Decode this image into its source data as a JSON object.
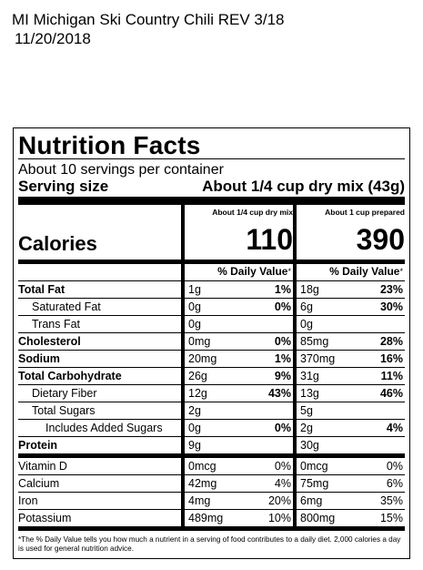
{
  "header": {
    "line1": "MI Michigan Ski Country Chili REV 3/18",
    "line2": "11/20/2018"
  },
  "label": {
    "title": "Nutrition Facts",
    "servings": "About 10 servings per container",
    "serving_size_label": "Serving size",
    "serving_size_value": "About 1/4 cup dry mix (43g)",
    "calories_label": "Calories",
    "col1_header": "About 1/4 cup dry mix",
    "col2_header": "About 1 cup prepared",
    "col1_calories": "110",
    "col2_calories": "390",
    "dv_header": "% Daily Value",
    "dv_asterisk": "*",
    "rows": [
      {
        "name": "Total Fat",
        "a": "1g",
        "ap": "1%",
        "b": "18g",
        "bp": "23%"
      },
      {
        "name": "Saturated Fat",
        "a": "0g",
        "ap": "0%",
        "b": "6g",
        "bp": "30%"
      },
      {
        "name": "Trans Fat",
        "a": "0g",
        "ap": "",
        "b": "0g",
        "bp": ""
      },
      {
        "name": "Cholesterol",
        "a": "0mg",
        "ap": "0%",
        "b": "85mg",
        "bp": "28%"
      },
      {
        "name": "Sodium",
        "a": "20mg",
        "ap": "1%",
        "b": "370mg",
        "bp": "16%"
      },
      {
        "name": "Total Carbohydrate",
        "a": "26g",
        "ap": "9%",
        "b": "31g",
        "bp": "11%"
      },
      {
        "name": "Dietary Fiber",
        "a": "12g",
        "ap": "43%",
        "b": "13g",
        "bp": "46%"
      },
      {
        "name": "Total Sugars",
        "a": "2g",
        "ap": "",
        "b": "5g",
        "bp": ""
      },
      {
        "name": "Includes Added Sugars",
        "a": "0g",
        "ap": "0%",
        "b": "2g",
        "bp": "4%"
      },
      {
        "name": "Protein",
        "a": "9g",
        "ap": "",
        "b": "30g",
        "bp": ""
      }
    ],
    "vitamins": [
      {
        "name": "Vitamin D",
        "a": "0mcg",
        "ap": "0%",
        "b": "0mcg",
        "bp": "0%"
      },
      {
        "name": "Calcium",
        "a": "42mg",
        "ap": "4%",
        "b": "75mg",
        "bp": "6%"
      },
      {
        "name": "Iron",
        "a": "4mg",
        "ap": "20%",
        "b": "6mg",
        "bp": "35%"
      },
      {
        "name": "Potassium",
        "a": "489mg",
        "ap": "10%",
        "b": "800mg",
        "bp": "15%"
      }
    ],
    "footnote": "*The % Daily Value tells you how much a nutrient in a serving of food contributes to a daily diet. 2,000 calories a day is used for general nutrition advice."
  }
}
